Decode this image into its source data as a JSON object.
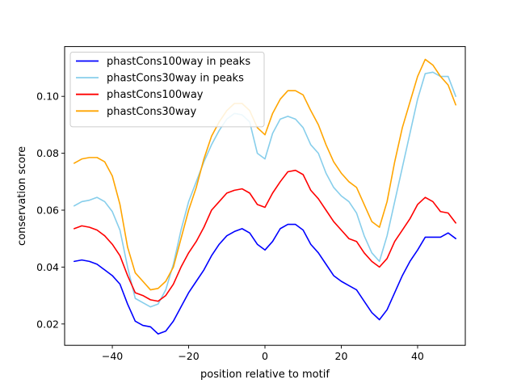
{
  "chart_data": {
    "type": "line",
    "xlabel": "position relative to motif",
    "ylabel": "conservation score",
    "xlim": [
      -52.5,
      52.5
    ],
    "ylim": [
      0.0125,
      0.1175
    ],
    "xticks": [
      -40,
      -20,
      0,
      20,
      40
    ],
    "yticks": [
      0.02,
      0.04,
      0.06,
      0.08,
      0.1
    ],
    "ytick_labels": [
      "0.02",
      "0.04",
      "0.06",
      "0.08",
      "0.10"
    ],
    "grid": false,
    "legend_position": "top-left",
    "x": [
      -50,
      -48,
      -46,
      -44,
      -42,
      -40,
      -38,
      -36,
      -34,
      -32,
      -30,
      -28,
      -26,
      -24,
      -22,
      -20,
      -18,
      -16,
      -14,
      -12,
      -10,
      -8,
      -6,
      -4,
      -2,
      0,
      2,
      4,
      6,
      8,
      10,
      12,
      14,
      16,
      18,
      20,
      22,
      24,
      26,
      28,
      30,
      32,
      34,
      36,
      38,
      40,
      42,
      44,
      46,
      48,
      50
    ],
    "series": [
      {
        "name": "phastCons100way in peaks",
        "color": "#0000ff",
        "values": [
          0.042,
          0.0425,
          0.042,
          0.041,
          0.039,
          0.037,
          0.034,
          0.027,
          0.021,
          0.0195,
          0.019,
          0.0165,
          0.0175,
          0.021,
          0.026,
          0.031,
          0.035,
          0.039,
          0.044,
          0.048,
          0.051,
          0.0525,
          0.0535,
          0.052,
          0.048,
          0.046,
          0.049,
          0.0535,
          0.055,
          0.055,
          0.053,
          0.048,
          0.045,
          0.041,
          0.037,
          0.035,
          0.0335,
          0.032,
          0.028,
          0.024,
          0.0215,
          0.025,
          0.031,
          0.037,
          0.042,
          0.046,
          0.0505,
          0.0505,
          0.0505,
          0.052,
          0.05
        ]
      },
      {
        "name": "phastCons30way in peaks",
        "color": "#87ceeb",
        "values": [
          0.0615,
          0.063,
          0.0635,
          0.0645,
          0.063,
          0.0595,
          0.053,
          0.04,
          0.029,
          0.0275,
          0.026,
          0.027,
          0.032,
          0.041,
          0.053,
          0.063,
          0.07,
          0.077,
          0.083,
          0.088,
          0.092,
          0.094,
          0.0935,
          0.091,
          0.08,
          0.078,
          0.087,
          0.092,
          0.093,
          0.092,
          0.089,
          0.083,
          0.08,
          0.073,
          0.068,
          0.065,
          0.063,
          0.059,
          0.051,
          0.045,
          0.042,
          0.051,
          0.063,
          0.075,
          0.087,
          0.099,
          0.108,
          0.1085,
          0.107,
          0.107,
          0.1
        ]
      },
      {
        "name": "phastCons100way",
        "color": "#ff0000",
        "values": [
          0.0535,
          0.0545,
          0.054,
          0.053,
          0.051,
          0.048,
          0.044,
          0.037,
          0.031,
          0.03,
          0.0285,
          0.028,
          0.03,
          0.034,
          0.04,
          0.045,
          0.049,
          0.054,
          0.06,
          0.063,
          0.066,
          0.067,
          0.0675,
          0.066,
          0.062,
          0.061,
          0.066,
          0.07,
          0.0735,
          0.074,
          0.0725,
          0.067,
          0.064,
          0.06,
          0.056,
          0.053,
          0.05,
          0.049,
          0.045,
          0.042,
          0.04,
          0.043,
          0.049,
          0.053,
          0.057,
          0.062,
          0.0645,
          0.063,
          0.0595,
          0.059,
          0.0555
        ]
      },
      {
        "name": "phastCons30way",
        "color": "#ffa500",
        "values": [
          0.0765,
          0.078,
          0.0785,
          0.0785,
          0.077,
          0.072,
          0.062,
          0.047,
          0.038,
          0.035,
          0.032,
          0.0325,
          0.035,
          0.04,
          0.05,
          0.06,
          0.068,
          0.078,
          0.086,
          0.091,
          0.095,
          0.0975,
          0.0975,
          0.095,
          0.089,
          0.0865,
          0.094,
          0.099,
          0.102,
          0.102,
          0.1005,
          0.095,
          0.09,
          0.083,
          0.077,
          0.073,
          0.07,
          0.068,
          0.062,
          0.056,
          0.054,
          0.063,
          0.077,
          0.089,
          0.098,
          0.107,
          0.113,
          0.111,
          0.107,
          0.104,
          0.097
        ]
      }
    ]
  }
}
